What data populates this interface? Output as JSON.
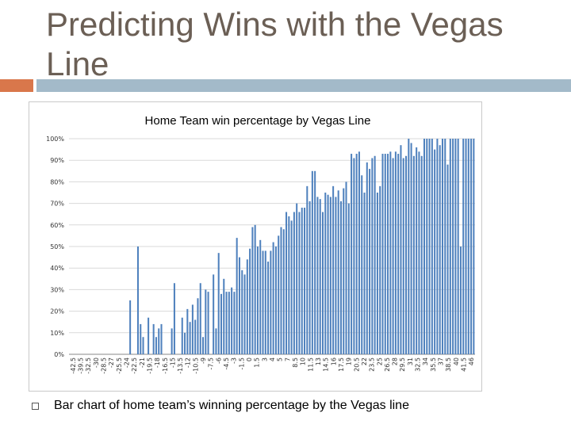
{
  "slide": {
    "title": "Predicting Wins with the Vegas Line",
    "caption": "Bar chart of home team’s winning percentage by the Vegas line"
  },
  "colors": {
    "title": "#6b5f55",
    "accent_left": "#d9774b",
    "accent_right": "#a3bac9",
    "bar": "#4f81bd",
    "grid": "#d9d9d9"
  },
  "chart_data": {
    "type": "bar",
    "title": "Home Team win percentage by Vegas Line",
    "xlabel": "",
    "ylabel": "",
    "ylim": [
      0,
      1
    ],
    "y_ticks": [
      "0%",
      "10%",
      "20%",
      "30%",
      "40%",
      "50%",
      "60%",
      "70%",
      "80%",
      "90%",
      "100%"
    ],
    "grid": true,
    "legend": "none",
    "x_tick_labels": [
      "-42.5",
      "-39.5",
      "-32.5",
      "-30",
      "-28.5",
      "-27",
      "-25.5",
      "-24",
      "-22.5",
      "-21",
      "-19.5",
      "-18",
      "-16.5",
      "-15",
      "-13.5",
      "-12",
      "-10.5",
      "-9",
      "-7.5",
      "-6",
      "-4.5",
      "-3",
      "-1.5",
      "0",
      "1.5",
      "3",
      "4",
      "5",
      "7",
      "8.5",
      "10",
      "11.5",
      "13",
      "14.5",
      "16",
      "17.5",
      "19",
      "20.5",
      "22",
      "23.5",
      "25",
      "26.5",
      "28",
      "29.5",
      "31",
      "32.5",
      "34",
      "35.5",
      "37",
      "38.5",
      "40",
      "41.5",
      "46"
    ],
    "values": [
      0,
      0,
      0,
      0,
      0,
      0,
      0,
      0,
      0,
      0,
      0,
      0,
      0,
      0,
      0,
      0,
      0,
      0,
      0,
      0,
      0,
      0,
      0,
      0.25,
      0,
      0,
      0.5,
      0.14,
      0.08,
      0,
      0.17,
      0,
      0.14,
      0.08,
      0.12,
      0.14,
      0,
      0,
      0,
      0.12,
      0.33,
      0,
      0,
      0.17,
      0.1,
      0.21,
      0.15,
      0.23,
      0.16,
      0.26,
      0.33,
      0.08,
      0.3,
      0.29,
      0,
      0.37,
      0.12,
      0.47,
      0.28,
      0.35,
      0.29,
      0.29,
      0.31,
      0.29,
      0.54,
      0.45,
      0.39,
      0.37,
      0.44,
      0.49,
      0.59,
      0.6,
      0.5,
      0.53,
      0.48,
      0.48,
      0.43,
      0.48,
      0.52,
      0.5,
      0.55,
      0.59,
      0.58,
      0.66,
      0.64,
      0.62,
      0.66,
      0.7,
      0.66,
      0.68,
      0.68,
      0.78,
      0.71,
      0.85,
      0.85,
      0.73,
      0.72,
      0.66,
      0.75,
      0.74,
      0.73,
      0.78,
      0.73,
      0.76,
      0.71,
      0.77,
      0.8,
      0.7,
      0.93,
      0.91,
      0.93,
      0.94,
      0.83,
      0.75,
      0.89,
      0.86,
      0.91,
      0.92,
      0.75,
      0.78,
      0.93,
      0.93,
      0.93,
      0.94,
      0.91,
      0.94,
      0.93,
      0.97,
      0.91,
      0.92,
      1.0,
      0.98,
      0.92,
      0.96,
      0.94,
      0.92,
      1.0,
      1.0,
      1.0,
      1.0,
      0.95,
      1.0,
      0.97,
      1.0,
      1.0,
      0.88,
      1.0,
      1.0,
      1.0,
      1.0,
      0.5,
      1.0,
      1.0,
      1.0,
      1.0,
      1.0
    ]
  }
}
